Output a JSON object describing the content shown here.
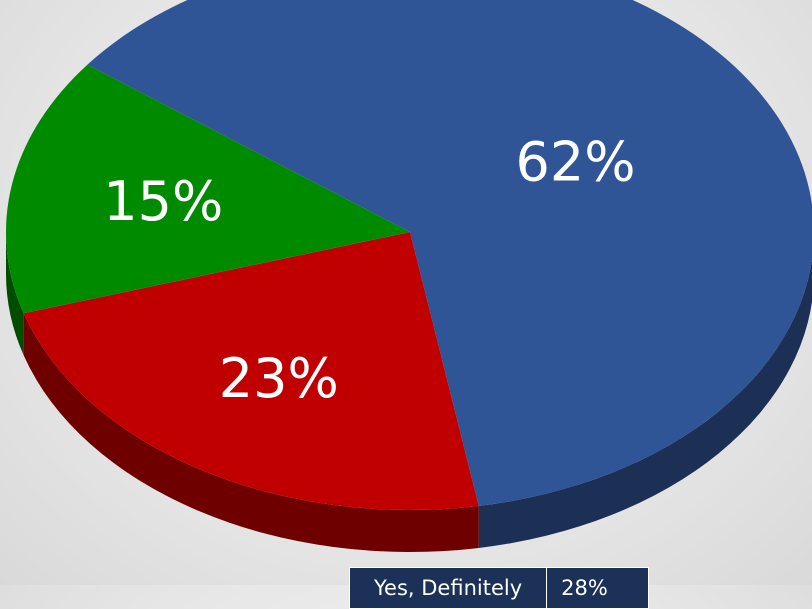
{
  "chart_data": {
    "type": "pie",
    "style": "3d",
    "slices": [
      {
        "label": "62%",
        "value": 62,
        "color": "#2f5597",
        "side_color": "#1c2f55"
      },
      {
        "label": "23%",
        "value": 23,
        "color": "#c00000",
        "side_color": "#6e0000"
      },
      {
        "label": "15%",
        "value": 15,
        "color": "#008a00",
        "side_color": "#004d00"
      }
    ],
    "legend": {
      "rows": [
        {
          "label": "Yes, Definitely",
          "value": "28%"
        }
      ]
    }
  }
}
